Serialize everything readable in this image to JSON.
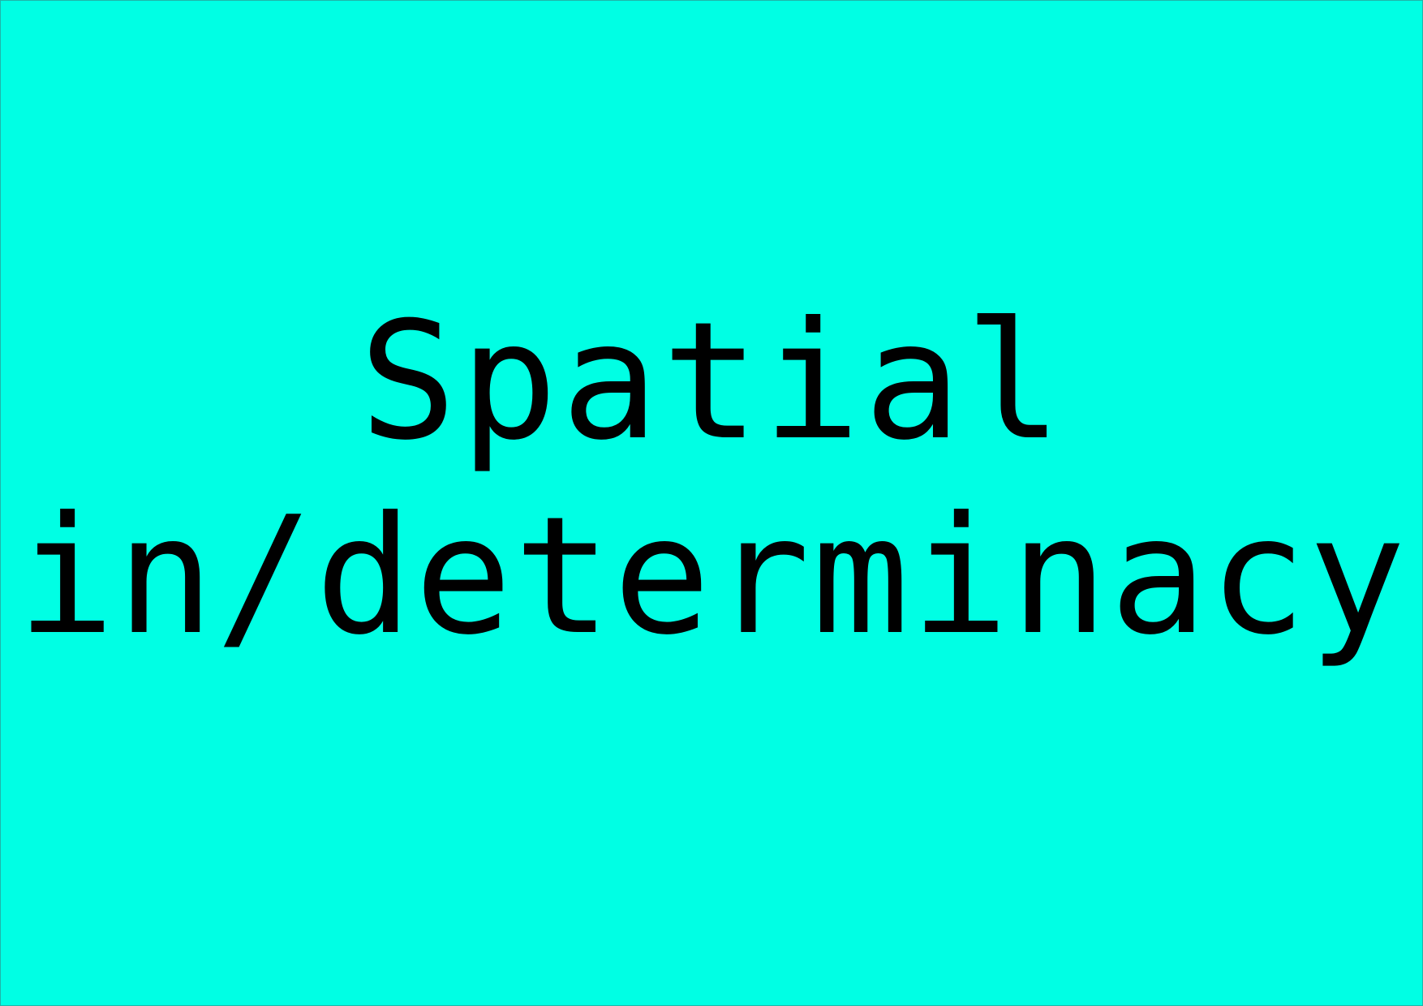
{
  "slide": {
    "background_color": "#00FFE4",
    "text_color": "#000000",
    "title_lines": [
      "Spatial",
      "in/determinacy"
    ]
  }
}
